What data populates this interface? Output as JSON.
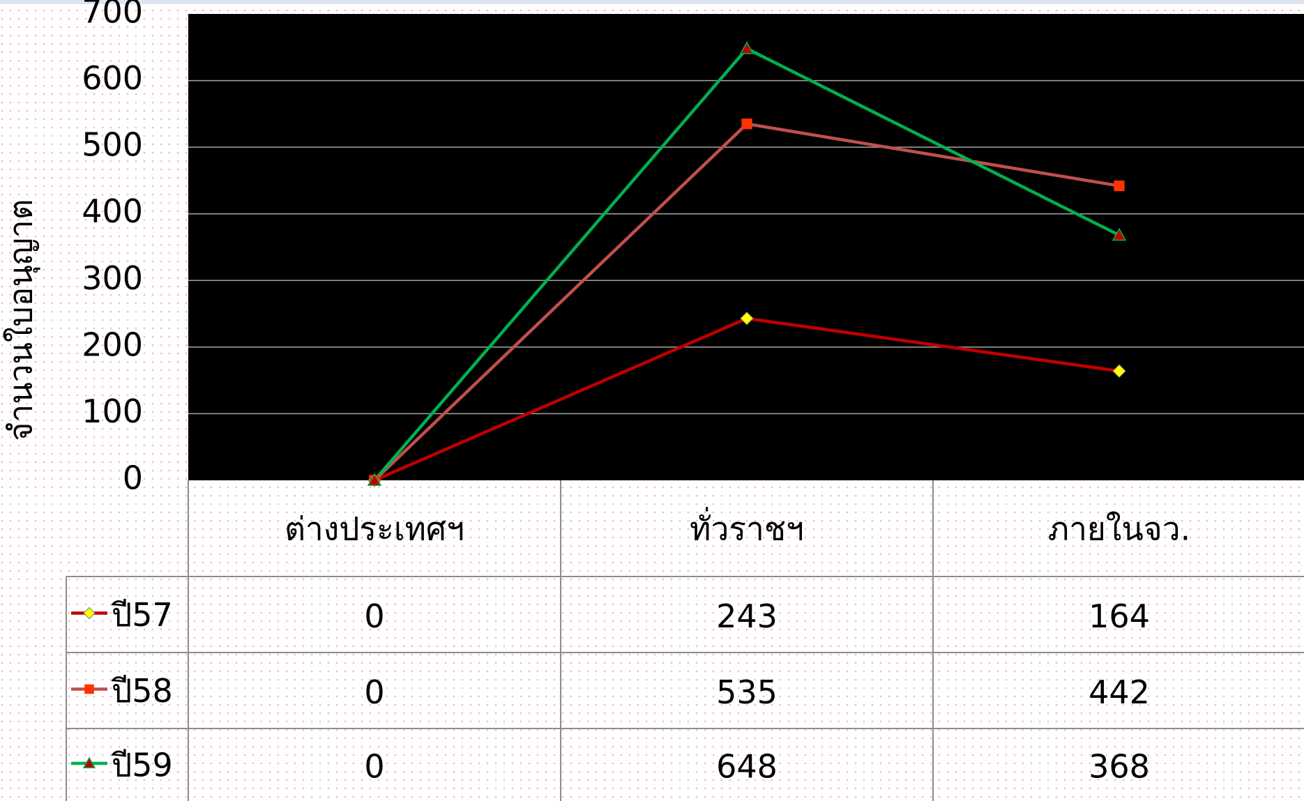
{
  "chart_data": {
    "type": "line",
    "y_label": "จำนวนใบอนุญาต",
    "categories": [
      "ต่างประเทศฯ",
      "ทั่วราชฯ",
      "ภายในจว."
    ],
    "series": [
      {
        "name": "ปี57",
        "color": "#c00000",
        "marker": "diamond",
        "marker_color": "#ffff00",
        "values": [
          0,
          243,
          164
        ]
      },
      {
        "name": "ปี58",
        "color": "#c0504d",
        "marker": "square",
        "marker_color": "#ff3300",
        "values": [
          0,
          535,
          442
        ]
      },
      {
        "name": "ปี59",
        "color": "#00b050",
        "marker": "triangle",
        "marker_color": "#c00000",
        "values": [
          0,
          648,
          368
        ]
      }
    ],
    "ylim": [
      0,
      700
    ],
    "yticks": [
      0,
      100,
      200,
      300,
      400,
      500,
      600,
      700
    ],
    "grid": true,
    "data_table": true
  }
}
